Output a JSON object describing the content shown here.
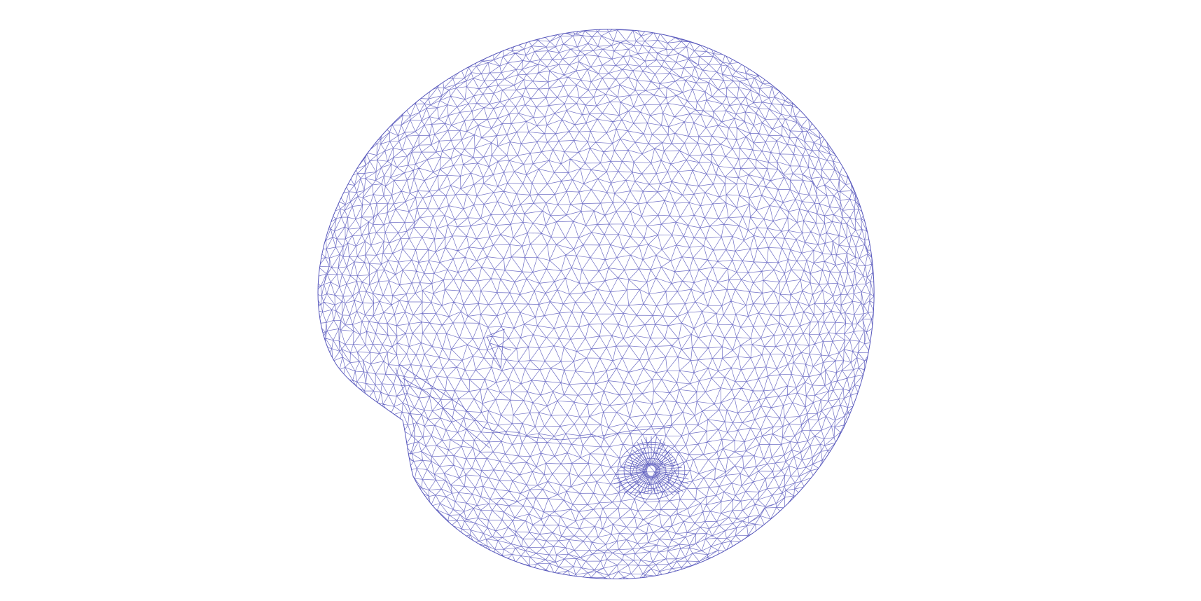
{
  "scene": {
    "background_color": "#ffffff",
    "mesh_color": "#5555bb",
    "render_mode": "wireframe",
    "object": "triangulated-mesh"
  }
}
